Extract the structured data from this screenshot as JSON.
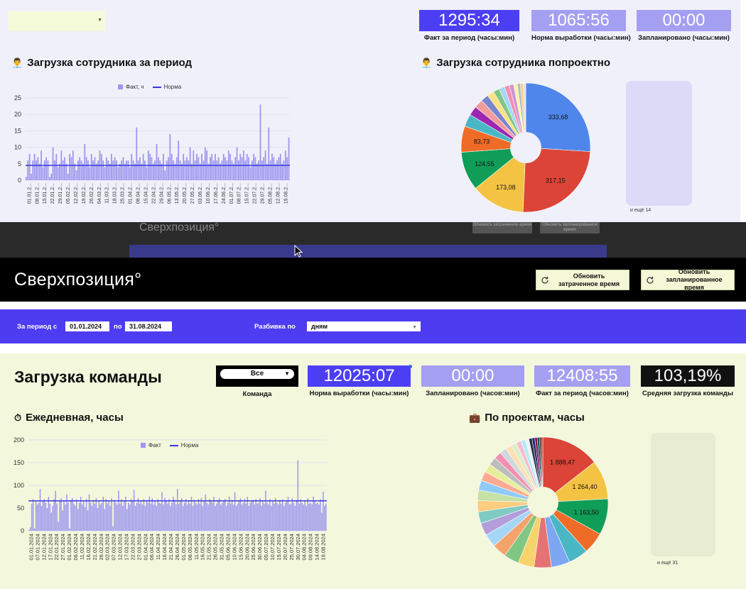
{
  "top_panel": {
    "kpis": [
      {
        "value": "1295:34",
        "label": "Факт за период (часы:мин)",
        "color": "#4c3ef2"
      },
      {
        "value": "1065:56",
        "label": "Норма выработки (часы:мин)",
        "color": "#a59ff2"
      },
      {
        "value": "00:00",
        "label": "Запланировано (часы:мин)",
        "color": "#a59ff2"
      }
    ],
    "load_title": "Загрузка сотрудника  за период",
    "project_title": "Загрузка сотрудника попроектно",
    "more_label": "и ещё 14"
  },
  "header": {
    "brand": "Сверхпозиция°",
    "refresh_spent": "Обновить затраченное время",
    "refresh_planned": "Обновить запланированное время",
    "behind_brand": "Сверхпозиция°",
    "behind_btn1": "Обновить затраченное время",
    "behind_btn2": "Обновить запланированное время"
  },
  "filters": {
    "period_label": "За период  с",
    "date_from": "01.01.2024",
    "to_label": "по",
    "date_to": "31.08.2024",
    "split_label": "Разбивка по",
    "split_value": "дням"
  },
  "team": {
    "title": "Загрузка команды",
    "team_select": "Все",
    "team_label": "Команда",
    "kpis": [
      {
        "value": "12025:07",
        "label": "Норма выработки (часы:мин)",
        "color": "#4c3ef2"
      },
      {
        "value": "00:00",
        "label": "Запланировано (часов:мин)",
        "color": "#a59ff2"
      },
      {
        "value": "12408:55",
        "label": "Факт за период (часов:мин)",
        "color": "#a59ff2"
      },
      {
        "value": "103,19%",
        "label": "Средняя загрузка команды",
        "color": "#111111"
      }
    ],
    "daily_title": "Ежедневная, часы",
    "projects_title": "По проектам, часы",
    "more_label": "и ещё 31"
  },
  "icons": {
    "employee": "person-icon",
    "timer": "stopwatch-icon",
    "briefcase": "briefcase-icon",
    "refresh": "refresh-icon",
    "dropdown": "chevron-down-icon"
  },
  "chart_data": [
    {
      "type": "bar",
      "legend": [
        "Факт, ч",
        "Норма"
      ],
      "ylim": [
        0,
        25
      ],
      "yticks": [
        0,
        5,
        10,
        15,
        20,
        25
      ],
      "norm": 4.5,
      "x_labels": [
        "01.01.2...",
        "08.01.2...",
        "15.01.2...",
        "22.01.2...",
        "29.01.2...",
        "05.02.2...",
        "12.02.2...",
        "19.02.2...",
        "26.02.2...",
        "04.03.2...",
        "11.03.2...",
        "18.03.2...",
        "25.03.2...",
        "01.04.2...",
        "08.04.2...",
        "15.04.2...",
        "22.04.2...",
        "29.04.2...",
        "06.05.2...",
        "13.05.2...",
        "20.05.2...",
        "27.05.2...",
        "03.06.2...",
        "10.06.2...",
        "17.06.2...",
        "24.06.2...",
        "01.07.2...",
        "08.07.2...",
        "15.07.2...",
        "22.07.2...",
        "29.07.2...",
        "05.08.2...",
        "12.08.2...",
        "19.08.2..."
      ],
      "series": [
        {
          "name": "Факт, ч",
          "values": [
            1,
            6,
            8,
            2,
            6,
            8,
            6,
            7,
            5,
            9,
            4,
            6,
            7,
            6,
            1,
            2,
            10,
            6,
            8,
            4,
            5,
            9,
            6,
            7,
            5,
            2,
            8,
            7,
            9,
            5,
            3,
            6,
            7,
            6,
            5,
            11,
            7,
            6,
            4,
            8,
            6,
            7,
            5,
            6,
            9,
            8,
            6,
            4,
            7,
            6,
            5,
            8,
            6,
            7,
            6,
            4,
            5,
            6,
            7,
            5,
            6,
            6,
            4,
            8,
            6,
            5,
            16,
            6,
            7,
            5,
            8,
            6,
            4,
            9,
            8,
            7,
            5,
            6,
            11,
            7,
            6,
            5,
            8,
            3,
            6,
            7,
            14,
            8,
            6,
            5,
            7,
            12,
            6,
            5,
            8,
            6,
            7,
            6,
            10,
            5,
            9,
            6,
            8,
            7,
            5,
            8,
            6,
            10,
            9,
            5,
            7,
            8,
            6,
            8,
            6,
            7,
            5,
            6,
            8,
            7,
            6,
            9,
            8,
            6,
            5,
            7,
            10,
            6,
            8,
            7,
            9,
            6,
            8,
            7,
            4,
            6,
            8,
            7,
            5,
            6,
            23,
            6,
            7,
            9,
            5,
            16,
            6,
            8,
            7,
            5,
            6,
            7,
            8,
            5,
            6,
            9,
            7,
            13
          ]
        },
        {
          "name": "Норма",
          "values": [
            4.5
          ]
        }
      ]
    },
    {
      "type": "pie",
      "values": [
        333.68,
        317.15,
        173.08,
        124.55,
        83.73,
        40,
        30,
        28,
        25,
        22,
        20,
        18,
        16,
        14,
        12,
        10,
        9,
        8
      ],
      "labels": [
        "333,68",
        "317,15",
        "173,08",
        "124,55",
        "83,73",
        "",
        "",
        "",
        "",
        "",
        "",
        "",
        "",
        "",
        "",
        "",
        "",
        ""
      ],
      "colors": [
        "#4f86ec",
        "#db4437",
        "#f4c343",
        "#0f9d58",
        "#ef6c28",
        "#4ab8c4",
        "#9c27b0",
        "#f29b9b",
        "#7986cb",
        "#ffe082",
        "#81c784",
        "#a5d6f7",
        "#f48fb1",
        "#ce93d8",
        "#fff59d",
        "#b0bec5",
        "#ffcc80",
        "#e0e0e0"
      ]
    },
    {
      "type": "bar",
      "legend": [
        "Факт",
        "Норма"
      ],
      "ylim": [
        0,
        200
      ],
      "yticks": [
        0,
        50,
        100,
        150,
        200
      ],
      "norm": 66,
      "x_labels": [
        "01.01.2024",
        "07.01.2024",
        "12.01.2024",
        "17.01.2024",
        "22.01.2024",
        "27.01.2024",
        "01.02.2024",
        "06.02.2024",
        "11.02.2024",
        "16.02.2024",
        "21.02.2024",
        "26.02.2024",
        "02.03.2024",
        "07.03.2024",
        "12.03.2024",
        "17.03.2024",
        "22.03.2024",
        "27.03.2024",
        "01.04.2024",
        "06.04.2024",
        "11.04.2024",
        "16.04.2024",
        "21.04.2024",
        "26.04.2024",
        "01.05.2024",
        "06.05.2024",
        "11.05.2024",
        "16.05.2024",
        "21.05.2024",
        "26.05.2024",
        "31.05.2024",
        "05.06.2024",
        "10.06.2024",
        "15.06.2024",
        "20.06.2024",
        "25.06.2024",
        "30.06.2024",
        "05.07.2024",
        "10.07.2024",
        "15.07.2024",
        "20.07.2024",
        "25.07.2024",
        "30.07.2024",
        "04.08.2024",
        "09.08.2024",
        "14.08.2024",
        "19.08.2024"
      ],
      "series": [
        {
          "name": "Факт",
          "values": [
            2,
            8,
            60,
            70,
            5,
            65,
            58,
            62,
            92,
            55,
            66,
            70,
            62,
            50,
            75,
            60,
            40,
            55,
            70,
            88,
            60,
            20,
            65,
            72,
            45,
            66,
            58,
            80,
            62,
            5,
            68,
            72,
            60,
            55,
            70,
            48,
            62,
            75,
            58,
            66,
            52,
            70,
            45,
            80,
            62,
            55,
            68,
            60,
            72,
            50,
            66,
            58,
            62,
            75,
            48,
            70,
            60,
            65,
            55,
            72,
            10,
            68,
            62,
            58,
            88,
            60,
            70,
            55,
            66,
            75,
            48,
            62,
            58,
            70,
            65,
            90,
            55,
            62,
            72,
            60,
            66,
            58,
            70,
            55,
            68,
            62,
            75,
            60,
            72,
            58,
            66,
            55,
            70,
            62,
            60,
            85,
            58,
            72,
            66,
            60,
            70,
            55,
            62,
            75,
            68,
            58,
            92,
            60,
            66,
            72,
            55,
            62,
            70,
            58,
            66,
            60,
            75,
            55,
            68,
            62,
            58,
            70,
            60,
            72,
            55,
            66,
            80,
            62,
            58,
            70,
            65,
            62,
            75,
            55,
            60,
            68,
            72,
            58,
            62,
            66,
            70,
            55,
            62,
            75,
            60,
            68,
            58,
            85,
            55,
            60,
            66,
            72,
            58,
            62,
            70,
            60,
            75,
            55,
            62,
            66,
            68,
            58,
            70,
            60,
            62,
            72,
            55,
            66,
            60,
            88,
            62,
            58,
            70,
            55,
            66,
            60,
            72,
            62,
            58,
            68,
            60,
            70,
            55,
            62,
            66,
            75,
            58,
            60,
            72,
            62,
            55,
            68,
            155,
            60,
            70,
            62,
            58,
            66,
            55,
            72,
            60,
            62,
            58,
            75,
            66,
            60,
            62,
            58,
            70,
            40,
            86,
            55,
            60
          ]
        },
        {
          "name": "Норма",
          "values": [
            66
          ]
        }
      ]
    },
    {
      "type": "pie",
      "values": [
        1888.47,
        1264.4,
        1163.5,
        700,
        640,
        600,
        560,
        520,
        490,
        460,
        430,
        400,
        380,
        360,
        340,
        320,
        300,
        280,
        260,
        240,
        220,
        200,
        180,
        160,
        140,
        120,
        100,
        90,
        80,
        70,
        60,
        50
      ],
      "labels": [
        "1 888,47",
        "1 264,40",
        "1 163,50",
        "",
        "",
        "",
        "",
        "",
        "",
        "",
        "",
        "",
        "",
        "",
        "",
        "",
        "",
        "",
        "",
        "",
        "",
        "",
        "",
        "",
        "",
        "",
        "",
        "",
        "",
        "",
        "",
        ""
      ],
      "colors": [
        "#db4437",
        "#f4c343",
        "#0f9d58",
        "#ef6c28",
        "#4ab8c4",
        "#7ea6f2",
        "#e57373",
        "#f6d36b",
        "#81c784",
        "#f4a46a",
        "#a5d6f7",
        "#b39ddb",
        "#80cbc4",
        "#ffcc80",
        "#c5e1a5",
        "#90caf9",
        "#ffab91",
        "#e6ee9c",
        "#bdbdbd",
        "#f48fb1",
        "#cfd8dc",
        "#ffe0b2",
        "#dcedc8",
        "#f8bbd0",
        "#b2ebf2",
        "#eceff1",
        "#263238",
        "#1a237e",
        "#880e4f",
        "#004d40",
        "#3e2723",
        "#b71c1c"
      ]
    }
  ]
}
